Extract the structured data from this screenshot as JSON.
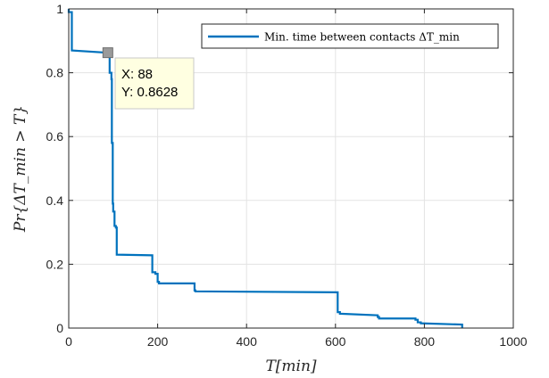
{
  "chart_data": {
    "type": "line",
    "xlabel": "T[min]",
    "ylabel": "Pr{ΔT_min > T}",
    "xlim": [
      0,
      1000
    ],
    "ylim": [
      0,
      1
    ],
    "xticks": [
      "0",
      "200",
      "400",
      "600",
      "800",
      "1000"
    ],
    "yticks": [
      "0",
      "0.2",
      "0.4",
      "0.6",
      "0.8",
      "1"
    ],
    "grid": true,
    "legend_position": "top-right",
    "series": [
      {
        "name": "Min. time between contacts ΔT_min",
        "color": "#0072BD",
        "x": [
          0,
          0,
          7,
          7,
          88,
          88,
          92,
          92,
          96,
          96,
          97,
          97,
          99,
          99,
          100,
          100,
          103,
          103,
          106,
          106,
          108,
          108,
          188,
          188,
          195,
          195,
          200,
          200,
          203,
          203,
          283,
          283,
          285,
          285,
          605,
          605,
          610,
          610,
          695,
          695,
          698,
          698,
          780,
          780,
          785,
          785,
          792,
          792,
          885,
          885
        ],
        "y": [
          1.0,
          0.99,
          0.99,
          0.87,
          0.8628,
          0.858,
          0.858,
          0.8,
          0.8,
          0.78,
          0.78,
          0.58,
          0.58,
          0.39,
          0.39,
          0.365,
          0.365,
          0.32,
          0.32,
          0.315,
          0.315,
          0.23,
          0.228,
          0.175,
          0.175,
          0.17,
          0.17,
          0.145,
          0.145,
          0.14,
          0.14,
          0.118,
          0.118,
          0.115,
          0.112,
          0.05,
          0.05,
          0.045,
          0.04,
          0.035,
          0.035,
          0.03,
          0.03,
          0.026,
          0.026,
          0.018,
          0.018,
          0.015,
          0.011,
          0.0
        ]
      }
    ],
    "datatip": {
      "x_label": "X: 88",
      "y_label": "Y: 0.8628",
      "x": 88,
      "y": 0.8628
    }
  }
}
